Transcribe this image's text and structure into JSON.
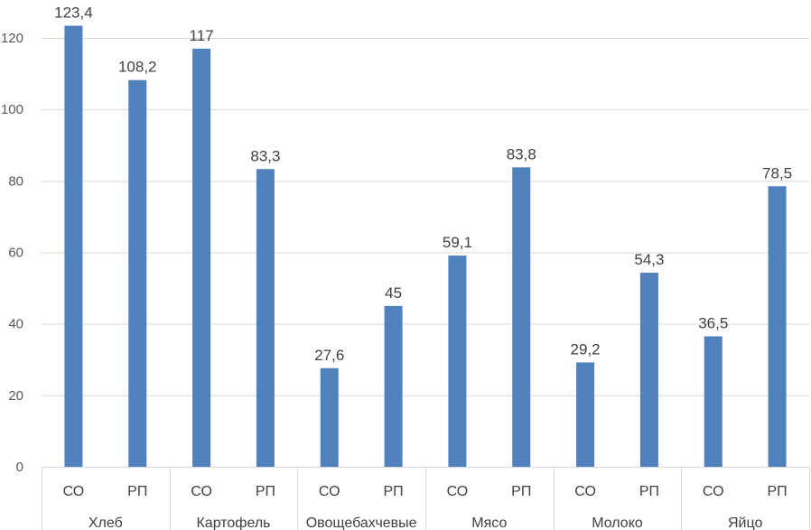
{
  "chart_data": {
    "type": "bar",
    "groups": [
      "Хлеб",
      "Картофель",
      "Овощебахчевые",
      "Мясо",
      "Молоко",
      "Яйцо"
    ],
    "subcategories": [
      "СО",
      "РП"
    ],
    "series": [
      {
        "values": [
          123.4,
          117,
          27.6,
          59.1,
          29.2,
          36.5
        ]
      },
      {
        "values": [
          108.2,
          83.3,
          45,
          83.8,
          54.3,
          78.5
        ]
      }
    ],
    "data_labels": [
      [
        "123,4",
        "108,2"
      ],
      [
        "117",
        "83,3"
      ],
      [
        "27,6",
        "45"
      ],
      [
        "59,1",
        "83,8"
      ],
      [
        "29,2",
        "54,3"
      ],
      [
        "36,5",
        "78,5"
      ]
    ],
    "yticks": [
      0,
      20,
      40,
      60,
      80,
      100,
      120
    ],
    "ylim": [
      0,
      130
    ],
    "grid": true,
    "bar_color": "#4f81bd",
    "legend": "none",
    "title": "",
    "xlabel": "",
    "ylabel": ""
  }
}
